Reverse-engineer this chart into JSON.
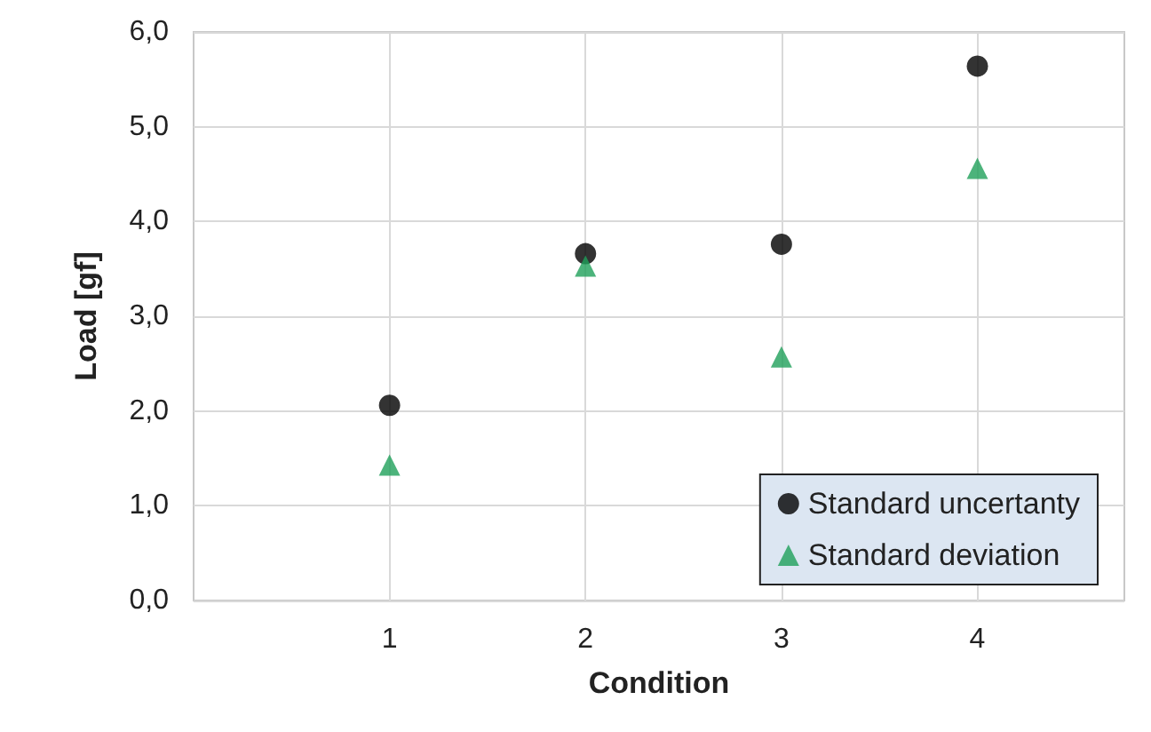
{
  "chart_data": {
    "type": "scatter",
    "xlabel": "Condition",
    "ylabel": "Load [gf]",
    "x": [
      1,
      2,
      3,
      4
    ],
    "series": [
      {
        "name": "Standard uncertanty",
        "color": "#000000",
        "marker": "circle",
        "values": [
          2.06,
          3.66,
          3.76,
          5.64
        ]
      },
      {
        "name": "Standard deviation",
        "color": "#1fa05a",
        "marker": "triangle",
        "values": [
          1.43,
          3.53,
          2.57,
          4.56
        ]
      }
    ],
    "xlim": [
      0,
      4.75
    ],
    "xticks": [
      1,
      2,
      3,
      4
    ],
    "ylim": [
      0,
      6
    ],
    "yticks": [
      {
        "value": 0,
        "label": "0,0"
      },
      {
        "value": 1,
        "label": "1,0"
      },
      {
        "value": 2,
        "label": "2,0"
      },
      {
        "value": 3,
        "label": "3,0"
      },
      {
        "value": 4,
        "label": "4,0"
      },
      {
        "value": 5,
        "label": "5,0"
      },
      {
        "value": 6,
        "label": "6,0"
      }
    ],
    "grid": true,
    "legend": "bottom right"
  }
}
